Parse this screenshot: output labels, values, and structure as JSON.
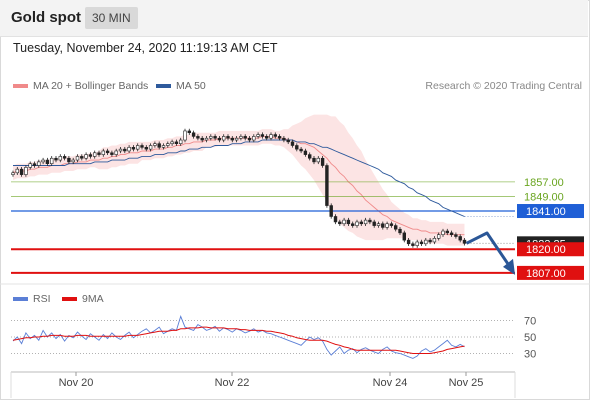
{
  "header": {
    "title": "Gold spot",
    "timeframe": "30 MIN"
  },
  "datetime": "Tuesday, November 24, 2020 11:19:13 AM CET",
  "legend": {
    "ma20": "MA 20 + Bollinger Bands",
    "ma50": "MA 50",
    "copyright": "Research © 2020 Trading Central",
    "ma20_color": "#f08a8a",
    "ma50_color": "#2e5a9c"
  },
  "rsi_legend": {
    "rsi": "RSI",
    "ma9": "9MA",
    "rsi_color": "#5b7fd6",
    "ma9_color": "#e01010"
  },
  "chart_data": {
    "type": "candlestick",
    "symbol": "Gold spot",
    "interval": "30 MIN",
    "x_ticks": [
      "Nov 20",
      "Nov 22",
      "Nov 24",
      "Nov 25"
    ],
    "levels": [
      {
        "value": 1857.0,
        "label": "1857.00",
        "color": "#6aa520",
        "kind": "resistance"
      },
      {
        "value": 1849.0,
        "label": "1849.00",
        "color": "#6aa520",
        "kind": "resistance"
      },
      {
        "value": 1841.0,
        "label": "1841.00",
        "color": "#1f5fd6",
        "kind": "pivot"
      },
      {
        "value": 1820.0,
        "label": "1820.00",
        "color": "#e01010",
        "kind": "support"
      },
      {
        "value": 1807.0,
        "label": "1807.00",
        "color": "#e01010",
        "kind": "support"
      }
    ],
    "last_price": {
      "value": 1823.25,
      "label": "1823.25"
    },
    "close": [
      1862,
      1864,
      1861,
      1865,
      1867,
      1866,
      1868,
      1869,
      1867,
      1870,
      1869,
      1871,
      1870,
      1868,
      1869,
      1871,
      1870,
      1872,
      1871,
      1873,
      1872,
      1874,
      1873,
      1872,
      1874,
      1875,
      1874,
      1876,
      1875,
      1877,
      1876,
      1875,
      1877,
      1878,
      1876,
      1877,
      1878,
      1879,
      1878,
      1880,
      1885,
      1884,
      1882,
      1881,
      1880,
      1881,
      1882,
      1881,
      1880,
      1882,
      1881,
      1880,
      1881,
      1882,
      1881,
      1880,
      1882,
      1883,
      1882,
      1881,
      1883,
      1882,
      1881,
      1880,
      1879,
      1877,
      1875,
      1874,
      1872,
      1870,
      1868,
      1870,
      1866,
      1844,
      1838,
      1835,
      1834,
      1836,
      1834,
      1833,
      1835,
      1834,
      1836,
      1835,
      1833,
      1834,
      1832,
      1834,
      1833,
      1831,
      1829,
      1825,
      1823,
      1822,
      1824,
      1823,
      1825,
      1824,
      1826,
      1828,
      1830,
      1829,
      1828,
      1827,
      1825,
      1823.25
    ],
    "ma50": [
      1866,
      1866,
      1866,
      1866,
      1866,
      1866,
      1866,
      1866,
      1866,
      1866,
      1866,
      1866,
      1866,
      1867,
      1867,
      1867,
      1867,
      1867,
      1867,
      1868,
      1868,
      1868,
      1868,
      1869,
      1869,
      1869,
      1869,
      1870,
      1870,
      1870,
      1871,
      1871,
      1871,
      1872,
      1872,
      1872,
      1873,
      1873,
      1873,
      1874,
      1874,
      1875,
      1875,
      1875,
      1876,
      1876,
      1876,
      1877,
      1877,
      1877,
      1877,
      1878,
      1878,
      1878,
      1879,
      1879,
      1879,
      1879,
      1880,
      1880,
      1880,
      1880,
      1880,
      1880,
      1880,
      1880,
      1879,
      1879,
      1879,
      1878,
      1878,
      1877,
      1876,
      1876,
      1875,
      1874,
      1873,
      1872,
      1871,
      1870,
      1869,
      1868,
      1867,
      1866,
      1865,
      1864,
      1862,
      1861,
      1860,
      1858,
      1857,
      1856,
      1854,
      1853,
      1851,
      1850,
      1849,
      1847,
      1846,
      1845,
      1843,
      1842,
      1841,
      1840,
      1839,
      1838
    ],
    "ma20": [
      1862,
      1863,
      1863,
      1863,
      1864,
      1864,
      1865,
      1865,
      1865,
      1866,
      1866,
      1866,
      1867,
      1867,
      1867,
      1868,
      1868,
      1868,
      1869,
      1869,
      1869,
      1870,
      1870,
      1871,
      1871,
      1872,
      1872,
      1873,
      1873,
      1873,
      1874,
      1874,
      1874,
      1875,
      1875,
      1875,
      1876,
      1876,
      1877,
      1877,
      1878,
      1878,
      1879,
      1879,
      1879,
      1880,
      1880,
      1880,
      1881,
      1881,
      1881,
      1881,
      1881,
      1881,
      1881,
      1881,
      1881,
      1881,
      1882,
      1882,
      1882,
      1881,
      1881,
      1881,
      1880,
      1880,
      1879,
      1878,
      1878,
      1877,
      1876,
      1874,
      1872,
      1870,
      1867,
      1865,
      1862,
      1860,
      1857,
      1855,
      1852,
      1850,
      1847,
      1845,
      1843,
      1841,
      1839,
      1838,
      1836,
      1835,
      1834,
      1833,
      1832,
      1831,
      1831,
      1830,
      1830,
      1829,
      1829,
      1829,
      1829,
      1828,
      1828,
      1828,
      1828,
      1828
    ],
    "bollinger_width": [
      4,
      4,
      4,
      4,
      4,
      4,
      4,
      4,
      4,
      4,
      4,
      4,
      4,
      4,
      4,
      4,
      4,
      4,
      4,
      4,
      5,
      6,
      6,
      6,
      6,
      6,
      6,
      6,
      6,
      6,
      5,
      5,
      5,
      5,
      5,
      5,
      5,
      5,
      5,
      5,
      5,
      5,
      5,
      5,
      5,
      4,
      4,
      4,
      4,
      4,
      4,
      4,
      4,
      4,
      4,
      4,
      4,
      4,
      4,
      4,
      4,
      4,
      4,
      5,
      6,
      8,
      10,
      12,
      14,
      16,
      18,
      20,
      22,
      24,
      26,
      28,
      28,
      28,
      27,
      26,
      25,
      24,
      22,
      20,
      18,
      16,
      14,
      12,
      10,
      9,
      8,
      7,
      7,
      6,
      6,
      6,
      6,
      6,
      6,
      6,
      6,
      6,
      6,
      6,
      6,
      6
    ],
    "forecast": {
      "from": 1823.25,
      "via": 1841.0,
      "to": 1807.0,
      "direction": "down"
    },
    "rsi": {
      "levels": [
        {
          "value": 70,
          "label": "70"
        },
        {
          "value": 50,
          "label": "50"
        },
        {
          "value": 30,
          "label": "30"
        }
      ],
      "ylim": [
        10,
        90
      ],
      "rsi": [
        45,
        50,
        42,
        55,
        48,
        52,
        46,
        58,
        50,
        55,
        48,
        53,
        45,
        52,
        49,
        56,
        51,
        47,
        54,
        50,
        46,
        53,
        48,
        55,
        50,
        47,
        52,
        56,
        49,
        53,
        57,
        60,
        55,
        58,
        62,
        54,
        57,
        60,
        58,
        75,
        62,
        60,
        58,
        65,
        62,
        58,
        60,
        63,
        57,
        61,
        59,
        56,
        60,
        58,
        55,
        57,
        60,
        56,
        58,
        55,
        54,
        52,
        50,
        48,
        46,
        44,
        42,
        40,
        45,
        50,
        47,
        49,
        45,
        35,
        28,
        33,
        38,
        30,
        34,
        36,
        31,
        35,
        37,
        34,
        32,
        30,
        35,
        38,
        33,
        31,
        30,
        28,
        26,
        24,
        27,
        33,
        36,
        32,
        34,
        38,
        42,
        46,
        40,
        38,
        41,
        38
      ],
      "ma9": [
        46,
        47,
        48,
        49,
        49,
        50,
        50,
        51,
        51,
        52,
        52,
        52,
        51,
        51,
        51,
        52,
        52,
        52,
        51,
        51,
        51,
        51,
        51,
        51,
        51,
        51,
        51,
        52,
        52,
        52,
        53,
        54,
        55,
        56,
        57,
        57,
        57,
        58,
        58,
        60,
        60,
        61,
        61,
        61,
        62,
        62,
        61,
        61,
        61,
        61,
        60,
        60,
        60,
        59,
        59,
        58,
        58,
        58,
        58,
        57,
        57,
        56,
        55,
        54,
        52,
        51,
        49,
        48,
        47,
        46,
        46,
        46,
        46,
        45,
        43,
        41,
        40,
        38,
        37,
        35,
        34,
        34,
        34,
        34,
        34,
        34,
        34,
        34,
        34,
        34,
        33,
        32,
        31,
        30,
        30,
        30,
        30,
        30,
        31,
        32,
        33,
        35,
        36,
        37,
        38,
        39
      ]
    }
  }
}
